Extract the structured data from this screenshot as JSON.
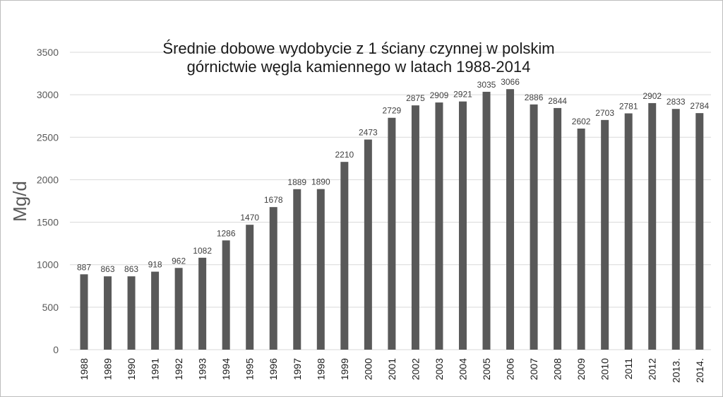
{
  "chart_data": {
    "type": "bar",
    "title_lines": [
      "Średnie dobowe wydobycie z 1 ściany czynnej w polskim",
      "górnictwie węgla kamiennego w latach 1988-2014"
    ],
    "xlabel": "",
    "ylabel": "Mg/d",
    "ylim": [
      0,
      3500
    ],
    "yticks": [
      0,
      500,
      1000,
      1500,
      2000,
      2500,
      3000,
      3500
    ],
    "grid": "horizontal",
    "legend": "none",
    "bar_color": "#595959",
    "categories": [
      "1988",
      "1989",
      "1990",
      "1991",
      "1992",
      "1993",
      "1994",
      "1995",
      "1996",
      "1997",
      "1998",
      "1999",
      "2000",
      "2001",
      "2002",
      "2003",
      "2004",
      "2005",
      "2006",
      "2007",
      "2008",
      "2009",
      "2010",
      "2011",
      "2012",
      "2013.",
      "2014."
    ],
    "values": [
      887,
      863,
      863,
      918,
      962,
      1082,
      1286,
      1470,
      1678,
      1889,
      1890,
      2210,
      2473,
      2729,
      2875,
      2909,
      2921,
      3035,
      3066,
      2886,
      2844,
      2602,
      2703,
      2781,
      2902,
      2833,
      2784
    ]
  }
}
